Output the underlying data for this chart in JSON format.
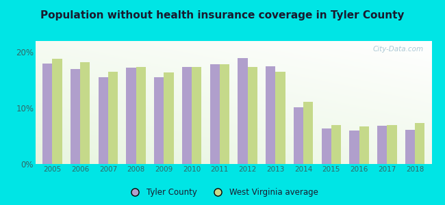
{
  "title": "Population without health insurance coverage in Tyler County",
  "years": [
    2005,
    2006,
    2007,
    2008,
    2009,
    2010,
    2011,
    2012,
    2013,
    2014,
    2015,
    2016,
    2017,
    2018
  ],
  "tyler_county": [
    18.0,
    17.0,
    15.5,
    17.2,
    15.5,
    17.3,
    17.8,
    19.0,
    17.5,
    10.2,
    6.3,
    6.0,
    6.8,
    6.1
  ],
  "wv_average": [
    18.8,
    18.2,
    16.5,
    17.3,
    16.4,
    17.3,
    17.8,
    17.3,
    16.5,
    11.1,
    7.0,
    6.7,
    7.0,
    7.3
  ],
  "tyler_color": "#b09fcc",
  "wv_color": "#c5d98a",
  "background_outer": "#00e5e5",
  "background_inner_light": "#e8f5e0",
  "ylim": [
    0,
    22
  ],
  "yticks": [
    0,
    10,
    20
  ],
  "ytick_labels": [
    "0%",
    "10%",
    "20%"
  ],
  "legend_tyler": "Tyler County",
  "legend_wv": "West Virginia average",
  "title_fontsize": 11,
  "bar_width": 0.35,
  "watermark": "City-Data.com"
}
